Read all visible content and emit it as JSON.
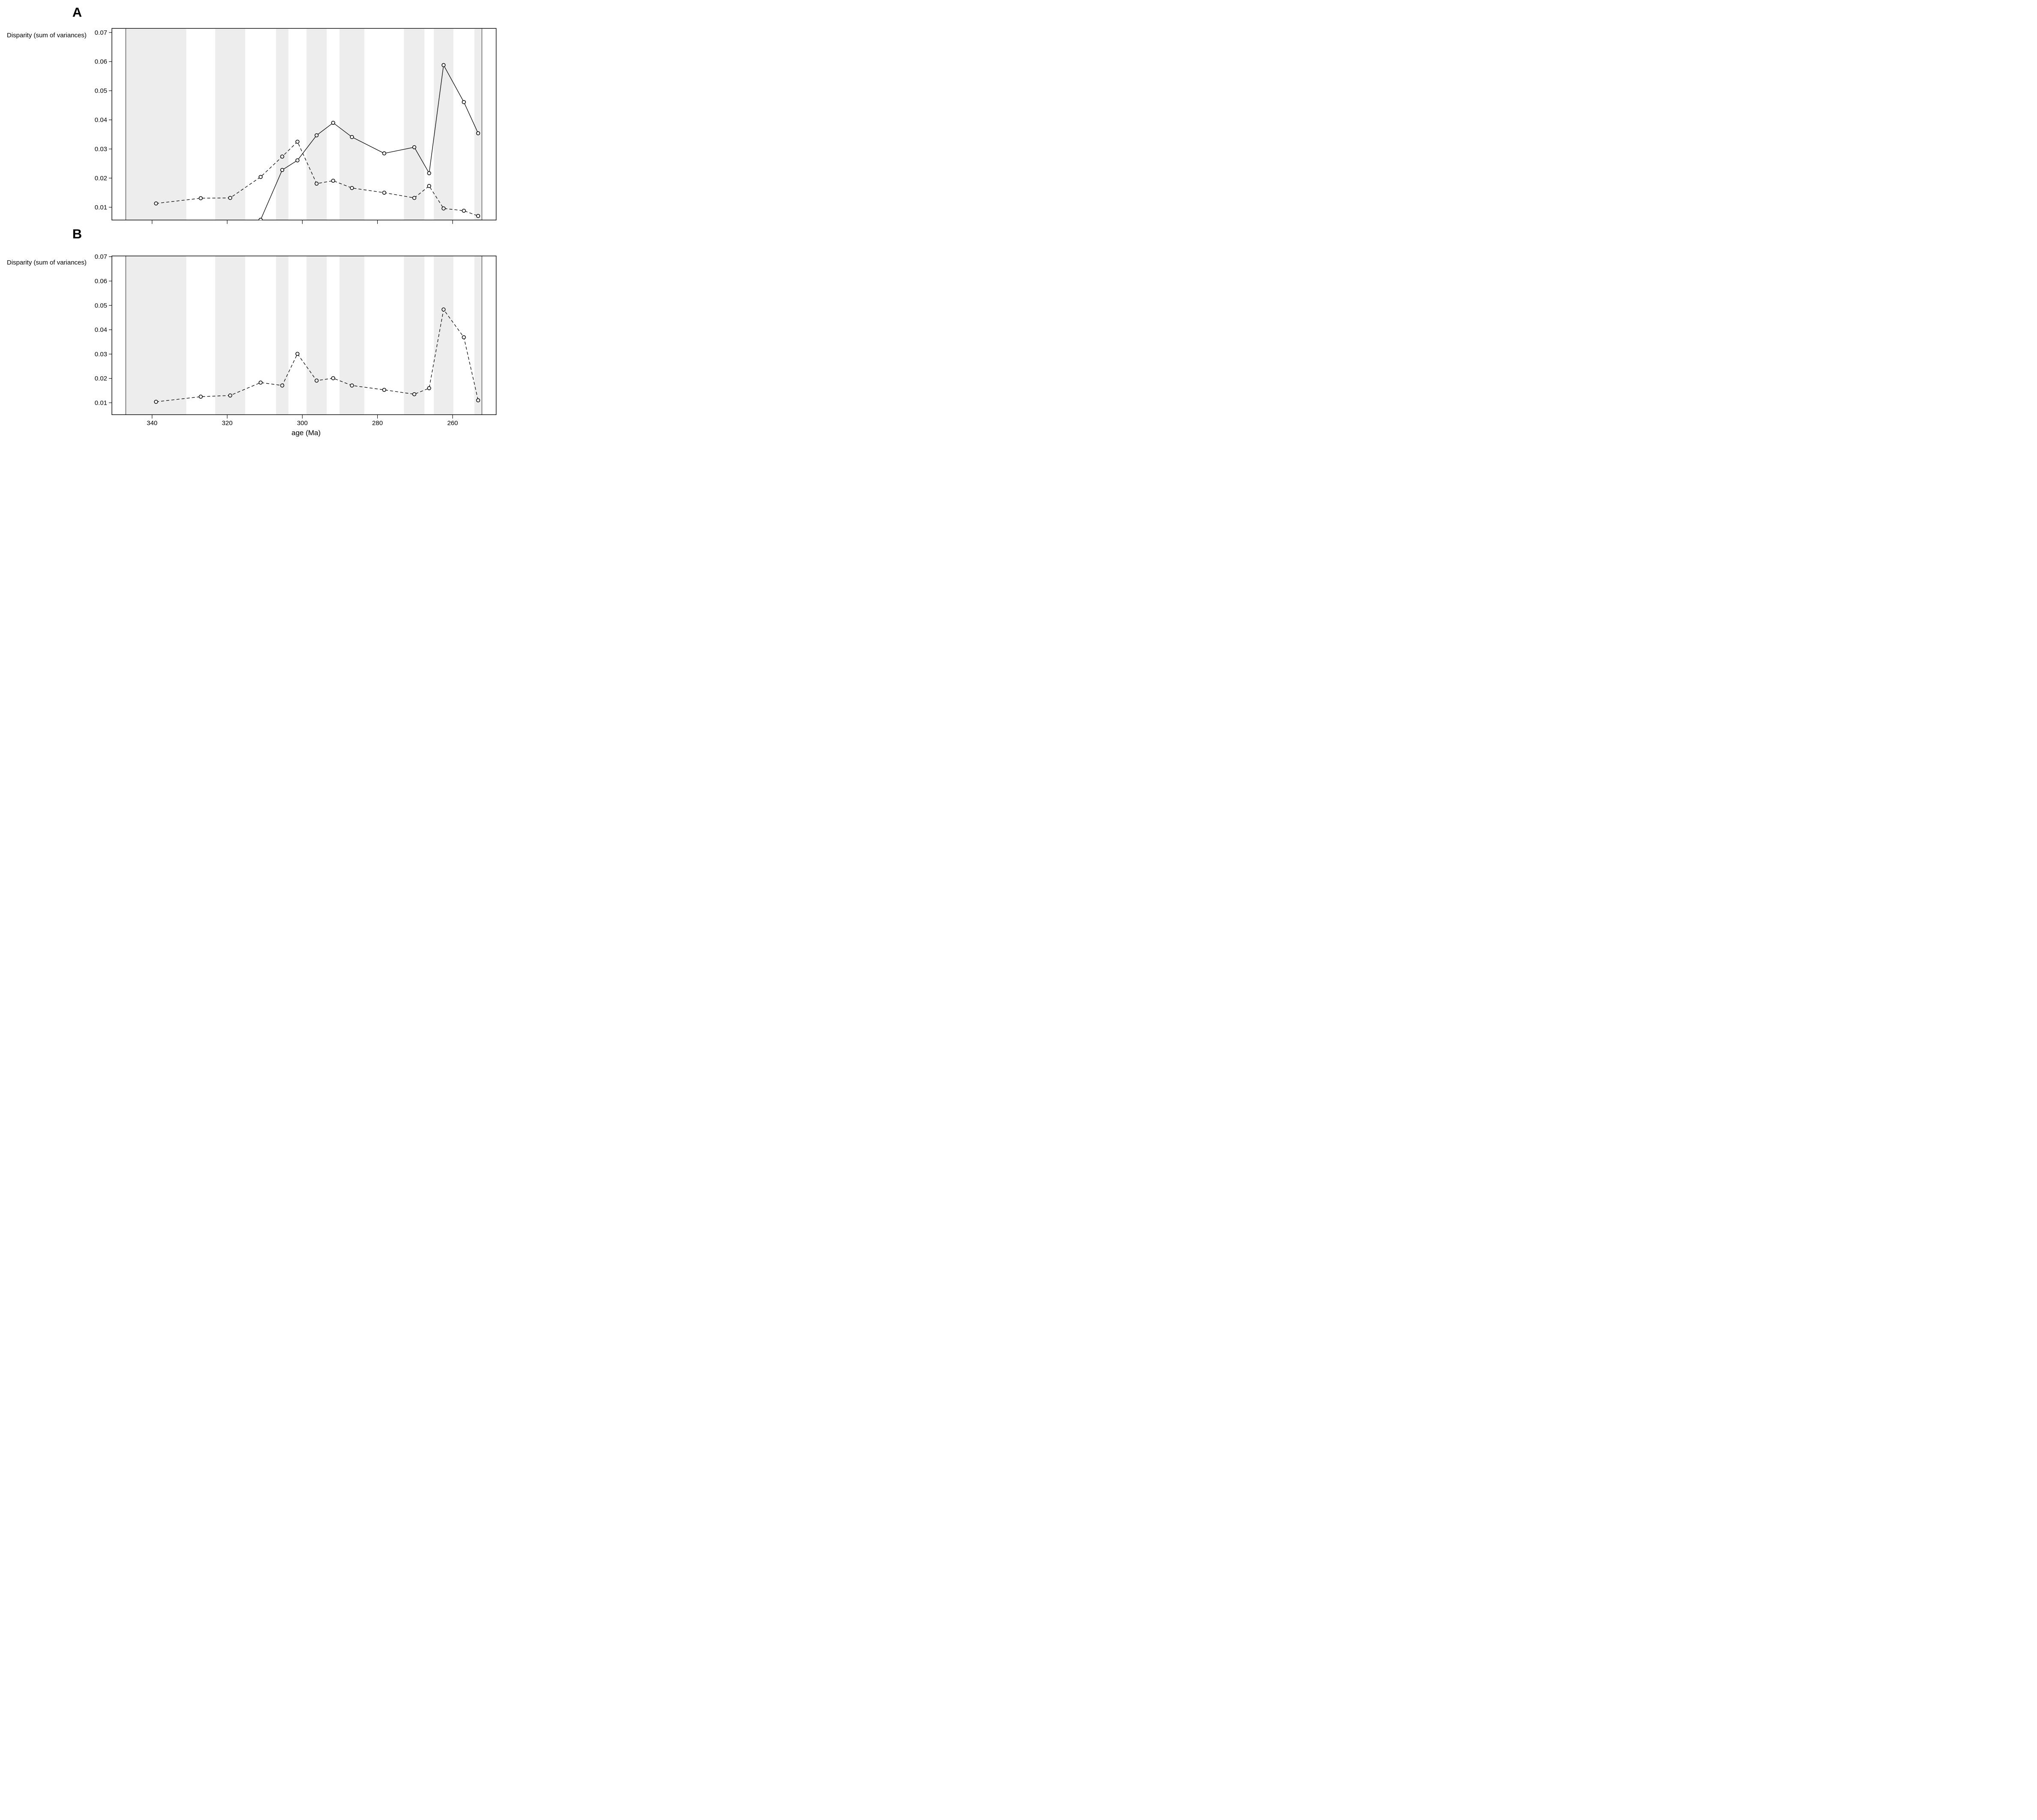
{
  "figure": {
    "background_color": "#ffffff",
    "band_color": "#ededed",
    "line_color": "#000000",
    "stage_band_boundaries_ma": [
      347.0,
      330.9,
      323.2,
      315.2,
      307.0,
      303.7,
      298.9,
      293.5,
      290.1,
      283.5,
      272.95,
      267.5,
      265.0,
      259.8,
      254.2,
      252.2
    ],
    "first_band_shaded": true,
    "data_region_boundary_lines_ma": [
      347.0,
      252.2
    ]
  },
  "chart_data": [
    {
      "panel_label": "A",
      "type": "line",
      "ylabel": "Disparity (sum of variances)",
      "xlabel": "",
      "x_axis_reversed": true,
      "xlim": [
        350.7,
        248.4
      ],
      "ylim": [
        0.0056,
        0.0714
      ],
      "x_ticks": [
        340,
        320,
        300,
        280,
        260
      ],
      "x_tick_labels": [],
      "x_tick_labels_shown": false,
      "y_ticks": [
        0.07,
        0.06,
        0.05,
        0.04,
        0.03,
        0.02,
        0.01
      ],
      "y_tick_labels": [
        "0.07",
        "0.06",
        "0.05",
        "0.04",
        "0.03",
        "0.02",
        "0.01"
      ],
      "grid": false,
      "legend": "none",
      "series": [
        {
          "name": "solid-line-series",
          "line_style": "solid",
          "marker": "open-circle",
          "x_ma": [
            311.1,
            305.35,
            301.3,
            296.2,
            291.8,
            286.8,
            278.2,
            270.2,
            266.25,
            262.4,
            257.0,
            253.2
          ],
          "y": [
            0.0057,
            0.0228,
            0.0261,
            0.0347,
            0.039,
            0.0341,
            0.0285,
            0.0306,
            0.0217,
            0.0588,
            0.0461,
            0.0354
          ]
        },
        {
          "name": "dashed-line-series",
          "line_style": "dashed",
          "marker": "open-circle",
          "x_ma": [
            338.95,
            327.05,
            319.2,
            311.1,
            305.35,
            301.3,
            296.2,
            291.8,
            286.8,
            278.2,
            270.2,
            266.25,
            262.4,
            257.0,
            253.2
          ],
          "y": [
            0.0113,
            0.0131,
            0.0132,
            0.0204,
            0.0274,
            0.0325,
            0.0181,
            0.0191,
            0.0166,
            0.015,
            0.0132,
            0.0173,
            0.0096,
            0.0088,
            0.007
          ]
        }
      ]
    },
    {
      "panel_label": "B",
      "type": "line",
      "ylabel": "Disparity (sum of variances)",
      "xlabel": "age (Ma)",
      "x_axis_reversed": true,
      "xlim": [
        350.7,
        248.4
      ],
      "ylim": [
        0.0051,
        0.0703
      ],
      "x_ticks": [
        340,
        320,
        300,
        280,
        260
      ],
      "x_tick_labels": [
        "340",
        "320",
        "300",
        "280",
        "260"
      ],
      "x_tick_labels_shown": true,
      "y_ticks": [
        0.07,
        0.06,
        0.05,
        0.04,
        0.03,
        0.02,
        0.01
      ],
      "y_tick_labels": [
        "0.07",
        "0.06",
        "0.05",
        "0.04",
        "0.03",
        "0.02",
        "0.01"
      ],
      "grid": false,
      "legend": "none",
      "series": [
        {
          "name": "dashed-line-series",
          "line_style": "dashed",
          "marker": "open-circle",
          "x_ma": [
            338.95,
            327.05,
            319.2,
            311.1,
            305.35,
            301.3,
            296.2,
            291.8,
            286.8,
            278.2,
            270.2,
            266.25,
            262.4,
            257.0,
            253.2
          ],
          "y": [
            0.0104,
            0.0125,
            0.013,
            0.0183,
            0.0171,
            0.0301,
            0.0191,
            0.0201,
            0.0171,
            0.0153,
            0.0135,
            0.016,
            0.0483,
            0.0369,
            0.011
          ]
        }
      ]
    }
  ]
}
